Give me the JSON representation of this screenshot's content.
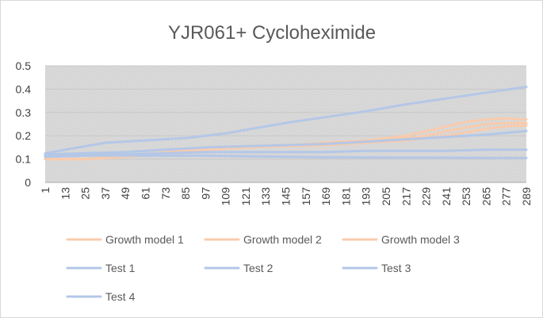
{
  "chart_data": {
    "type": "line",
    "title": "YJR061+ Cycloheximide",
    "xlabel": "",
    "ylabel": "",
    "ylim": [
      0,
      0.5
    ],
    "yticks": [
      "0",
      "0.1",
      "0.2",
      "0.3",
      "0.4",
      "0.5"
    ],
    "xlim": [
      1,
      289
    ],
    "xticks": [
      "1",
      "13",
      "25",
      "37",
      "49",
      "61",
      "73",
      "85",
      "97",
      "109",
      "121",
      "133",
      "145",
      "157",
      "169",
      "181",
      "193",
      "205",
      "217",
      "229",
      "241",
      "253",
      "265",
      "277",
      "289"
    ],
    "grid": true,
    "legend_position": "bottom",
    "series": [
      {
        "name": "Growth model 1",
        "color": "#f8cbad",
        "x": [
          1,
          25,
          49,
          73,
          97,
          121,
          145,
          169,
          193,
          205,
          217,
          229,
          241,
          253,
          265,
          277,
          289
        ],
        "y": [
          0.1,
          0.1,
          0.11,
          0.13,
          0.15,
          0.155,
          0.16,
          0.17,
          0.18,
          0.19,
          0.2,
          0.22,
          0.24,
          0.26,
          0.27,
          0.275,
          0.27
        ]
      },
      {
        "name": "Growth model 2",
        "color": "#f8cbad",
        "x": [
          1,
          25,
          49,
          73,
          97,
          121,
          145,
          169,
          193,
          205,
          217,
          229,
          241,
          253,
          265,
          277,
          289
        ],
        "y": [
          0.1,
          0.1,
          0.11,
          0.12,
          0.14,
          0.15,
          0.16,
          0.165,
          0.17,
          0.18,
          0.19,
          0.2,
          0.22,
          0.235,
          0.25,
          0.255,
          0.255
        ]
      },
      {
        "name": "Growth model 3",
        "color": "#f8cbad",
        "x": [
          1,
          25,
          49,
          73,
          97,
          121,
          145,
          169,
          193,
          205,
          217,
          229,
          241,
          253,
          265,
          277,
          289
        ],
        "y": [
          0.1,
          0.1,
          0.11,
          0.12,
          0.14,
          0.15,
          0.155,
          0.16,
          0.17,
          0.175,
          0.18,
          0.19,
          0.2,
          0.215,
          0.23,
          0.24,
          0.245
        ]
      },
      {
        "name": "Test 1",
        "color": "#b4c7e7",
        "x": [
          1,
          13,
          25,
          37,
          61,
          85,
          109,
          121,
          145,
          169,
          193,
          217,
          241,
          265,
          289
        ],
        "y": [
          0.125,
          0.14,
          0.155,
          0.17,
          0.18,
          0.19,
          0.21,
          0.225,
          0.255,
          0.28,
          0.305,
          0.335,
          0.36,
          0.385,
          0.41
        ]
      },
      {
        "name": "Test 2",
        "color": "#b4c7e7",
        "x": [
          1,
          25,
          49,
          73,
          97,
          121,
          145,
          169,
          193,
          217,
          241,
          265,
          289
        ],
        "y": [
          0.12,
          0.125,
          0.13,
          0.14,
          0.15,
          0.155,
          0.16,
          0.165,
          0.175,
          0.185,
          0.195,
          0.205,
          0.22
        ]
      },
      {
        "name": "Test 3",
        "color": "#b4c7e7",
        "x": [
          1,
          25,
          49,
          73,
          97,
          121,
          145,
          169,
          193,
          217,
          241,
          265,
          289
        ],
        "y": [
          0.115,
          0.12,
          0.12,
          0.125,
          0.13,
          0.13,
          0.13,
          0.13,
          0.135,
          0.135,
          0.135,
          0.14,
          0.14
        ]
      },
      {
        "name": "Test 4",
        "color": "#b4c7e7",
        "x": [
          1,
          25,
          49,
          73,
          97,
          121,
          145,
          169,
          193,
          217,
          241,
          265,
          289
        ],
        "y": [
          0.11,
          0.115,
          0.115,
          0.115,
          0.115,
          0.112,
          0.11,
          0.108,
          0.107,
          0.106,
          0.106,
          0.105,
          0.105
        ]
      }
    ]
  }
}
